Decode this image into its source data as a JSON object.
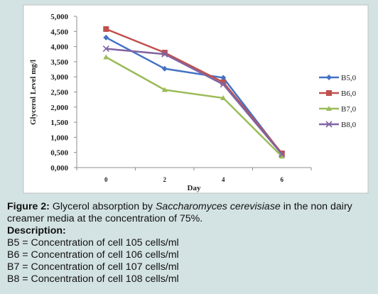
{
  "chart_data": {
    "type": "line",
    "x": [
      "0",
      "2",
      "4",
      "6"
    ],
    "xlabel": "Day",
    "ylabel": "Glycerol Level mg/l",
    "ylim": [
      0,
      5.0
    ],
    "yticks": [
      "0,000",
      "0,500",
      "1,000",
      "1,500",
      "2,000",
      "2,500",
      "3,000",
      "3,500",
      "4,000",
      "4,500",
      "5,000"
    ],
    "series": [
      {
        "name": "B5,0",
        "values": [
          4.3,
          3.27,
          2.97,
          0.45
        ],
        "color": "#4472c4",
        "marker": "diamond"
      },
      {
        "name": "B6,0",
        "values": [
          4.58,
          3.8,
          2.82,
          0.47
        ],
        "color": "#c0504d",
        "marker": "square"
      },
      {
        "name": "B7,0",
        "values": [
          3.65,
          2.57,
          2.3,
          0.37
        ],
        "color": "#9bbb59",
        "marker": "triangle"
      },
      {
        "name": "B8,0",
        "values": [
          3.93,
          3.75,
          2.75,
          0.44
        ],
        "color": "#8064a2",
        "marker": "cross"
      }
    ],
    "grid": false,
    "legend": "right"
  },
  "caption": {
    "figure_label": "Figure 2:",
    "text_before": " Glycerol absorption by ",
    "species": "Saccharomyces cerevisiase",
    "text_after": " in the non dairy creamer media at the concentration of 75%.",
    "description_label": "Description:",
    "lines": [
      "B5 = Concentration of cell 105 cells/ml",
      "B6 = Concentration of cell 106 cells/ml",
      "B7 = Concentration of cell 107 cells/ml",
      "B8 = Concentration of cell 108 cells/ml"
    ]
  }
}
